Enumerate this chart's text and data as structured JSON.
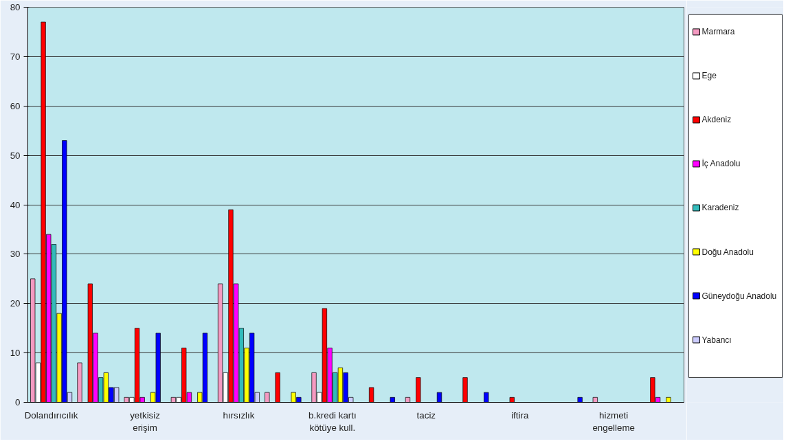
{
  "chart_data": {
    "type": "bar",
    "categories": [
      "Dolandırıcılık",
      null,
      "yetkisiz erişim",
      null,
      "hırsızlık",
      null,
      "b.kredi kartı kötüye kull.",
      null,
      "taciz",
      null,
      "iftira",
      null,
      "hizmeti engelleme",
      null
    ],
    "series": [
      {
        "name": "Marmara",
        "color": "#f49ac1",
        "values": [
          25,
          8,
          1,
          1,
          24,
          2,
          6,
          0,
          1,
          0,
          0,
          0,
          1,
          0
        ]
      },
      {
        "name": "Ege",
        "color": "#ffffff",
        "values": [
          8,
          0,
          1,
          1,
          6,
          0,
          2,
          0,
          0,
          0,
          0,
          0,
          0,
          0
        ]
      },
      {
        "name": "Akdeniz",
        "color": "#ff0000",
        "values": [
          77,
          24,
          15,
          11,
          39,
          6,
          19,
          3,
          5,
          5,
          1,
          0,
          0,
          5
        ]
      },
      {
        "name": "İç Anadolu",
        "color": "#ff00ff",
        "values": [
          34,
          14,
          1,
          2,
          24,
          0,
          11,
          0,
          0,
          0,
          0,
          0,
          0,
          1
        ]
      },
      {
        "name": "Karadeniz",
        "color": "#33bbbb",
        "values": [
          32,
          5,
          0,
          0,
          15,
          0,
          6,
          0,
          0,
          0,
          0,
          0,
          0,
          0
        ]
      },
      {
        "name": "Doğu Anadolu",
        "color": "#ffff00",
        "values": [
          18,
          6,
          2,
          2,
          11,
          2,
          7,
          0,
          0,
          0,
          0,
          0,
          0,
          1
        ]
      },
      {
        "name": "Güneydoğu Anadolu",
        "color": "#0000ff",
        "values": [
          53,
          3,
          14,
          14,
          14,
          1,
          6,
          1,
          2,
          2,
          0,
          1,
          0,
          0
        ]
      },
      {
        "name": "Yabancı",
        "color": "#ccccff",
        "values": [
          2,
          3,
          0,
          0,
          2,
          0,
          1,
          0,
          0,
          0,
          0,
          0,
          0,
          0
        ]
      }
    ],
    "ylim": [
      0,
      80
    ],
    "yticks": [
      0,
      10,
      20,
      30,
      40,
      50,
      60,
      70,
      80
    ],
    "grid": "y",
    "legend": "right"
  }
}
